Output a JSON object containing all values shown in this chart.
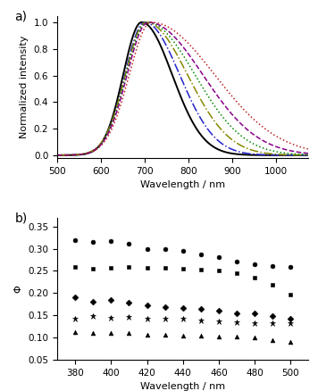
{
  "panel_a": {
    "title": "a)",
    "xlabel": "Wavelength / nm",
    "ylabel": "Normalized intensity",
    "xlim": [
      500,
      1075
    ],
    "ylim": [
      -0.02,
      1.05
    ],
    "xticks": [
      500,
      600,
      700,
      800,
      900,
      1000
    ],
    "yticks": [
      0.0,
      0.2,
      0.4,
      0.6,
      0.8,
      1.0
    ],
    "curves": [
      {
        "color": "#000000",
        "linestyle": "-",
        "linewidth": 1.4,
        "peak": 693,
        "sigma_l": 42,
        "sigma_r": 70
      },
      {
        "color": "#2222CC",
        "linestyle": "-.",
        "linewidth": 1.1,
        "peak": 700,
        "sigma_l": 45,
        "sigma_r": 80
      },
      {
        "color": "#888800",
        "linestyle": "-.",
        "linewidth": 1.1,
        "peak": 703,
        "sigma_l": 47,
        "sigma_r": 95
      },
      {
        "color": "#008800",
        "linestyle": ":",
        "linewidth": 1.1,
        "peak": 705,
        "sigma_l": 47,
        "sigma_r": 110
      },
      {
        "color": "#880088",
        "linestyle": "--",
        "linewidth": 1.1,
        "peak": 708,
        "sigma_l": 48,
        "sigma_r": 125
      },
      {
        "color": "#BB2222",
        "linestyle": ":",
        "linewidth": 1.1,
        "peak": 715,
        "sigma_l": 50,
        "sigma_r": 145
      }
    ]
  },
  "panel_b": {
    "title": "b)",
    "xlabel": "Wavelength / nm",
    "ylabel": "Φ",
    "xlim": [
      370,
      510
    ],
    "ylim": [
      0.05,
      0.37
    ],
    "xticks": [
      380,
      400,
      420,
      440,
      460,
      480,
      500
    ],
    "yticks": [
      0.05,
      0.1,
      0.15,
      0.2,
      0.25,
      0.3,
      0.35
    ],
    "series": [
      {
        "marker": "o",
        "markersize": 3.5,
        "x": [
          380,
          390,
          400,
          410,
          420,
          430,
          440,
          450,
          460,
          470,
          480,
          490,
          500
        ],
        "y": [
          0.32,
          0.315,
          0.318,
          0.311,
          0.3,
          0.3,
          0.295,
          0.288,
          0.28,
          0.27,
          0.265,
          0.26,
          0.258
        ]
      },
      {
        "marker": "s",
        "markersize": 3.5,
        "x": [
          380,
          390,
          400,
          410,
          420,
          430,
          440,
          450,
          460,
          470,
          480,
          490,
          500
        ],
        "y": [
          0.258,
          0.255,
          0.257,
          0.258,
          0.257,
          0.256,
          0.255,
          0.252,
          0.25,
          0.245,
          0.234,
          0.218,
          0.197
        ]
      },
      {
        "marker": "D",
        "markersize": 3.5,
        "x": [
          380,
          390,
          400,
          410,
          420,
          430,
          440,
          450,
          460,
          470,
          480,
          490,
          500
        ],
        "y": [
          0.19,
          0.18,
          0.185,
          0.178,
          0.172,
          0.168,
          0.167,
          0.165,
          0.16,
          0.155,
          0.155,
          0.148,
          0.143
        ]
      },
      {
        "marker": "*",
        "markersize": 5,
        "x": [
          380,
          390,
          400,
          410,
          420,
          430,
          440,
          450,
          460,
          470,
          480,
          490,
          500
        ],
        "y": [
          0.143,
          0.148,
          0.145,
          0.146,
          0.143,
          0.143,
          0.142,
          0.138,
          0.136,
          0.135,
          0.133,
          0.133,
          0.132
        ]
      },
      {
        "marker": "^",
        "markersize": 3.5,
        "x": [
          380,
          390,
          400,
          410,
          420,
          430,
          440,
          450,
          460,
          470,
          480,
          490,
          500
        ],
        "y": [
          0.112,
          0.11,
          0.111,
          0.11,
          0.107,
          0.106,
          0.104,
          0.104,
          0.103,
          0.102,
          0.1,
          0.095,
          0.09
        ]
      }
    ]
  }
}
